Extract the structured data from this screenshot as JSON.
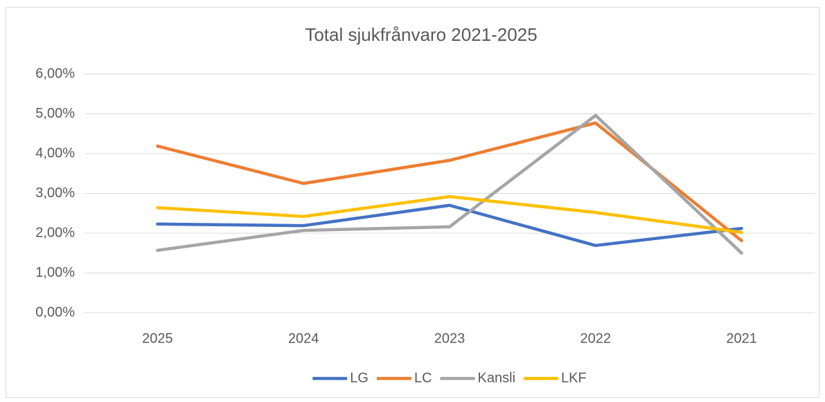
{
  "chart_data": {
    "type": "line",
    "title": "Total sjukfrånvaro 2021-2025",
    "categories": [
      "2025",
      "2024",
      "2023",
      "2022",
      "2021"
    ],
    "series": [
      {
        "name": "LG",
        "color": "#4472c4",
        "values": [
          2.23,
          2.19,
          2.7,
          1.69,
          2.12
        ]
      },
      {
        "name": "LC",
        "color": "#ed7d31",
        "values": [
          4.19,
          3.25,
          3.83,
          4.77,
          1.81
        ]
      },
      {
        "name": "Kansli",
        "color": "#a5a5a5",
        "values": [
          1.57,
          2.07,
          2.16,
          4.96,
          1.5
        ]
      },
      {
        "name": "LKF",
        "color": "#ffc000",
        "values": [
          2.64,
          2.42,
          2.92,
          2.52,
          2.02
        ]
      }
    ],
    "ylim": [
      0,
      6
    ],
    "yticks": [
      {
        "value": 0,
        "label": "0,00%"
      },
      {
        "value": 1,
        "label": "1,00%"
      },
      {
        "value": 2,
        "label": "2,00%"
      },
      {
        "value": 3,
        "label": "3,00%"
      },
      {
        "value": 4,
        "label": "4,00%"
      },
      {
        "value": 5,
        "label": "5,00%"
      },
      {
        "value": 6,
        "label": "6,00%"
      }
    ],
    "grid": true,
    "legend": "bottom"
  }
}
